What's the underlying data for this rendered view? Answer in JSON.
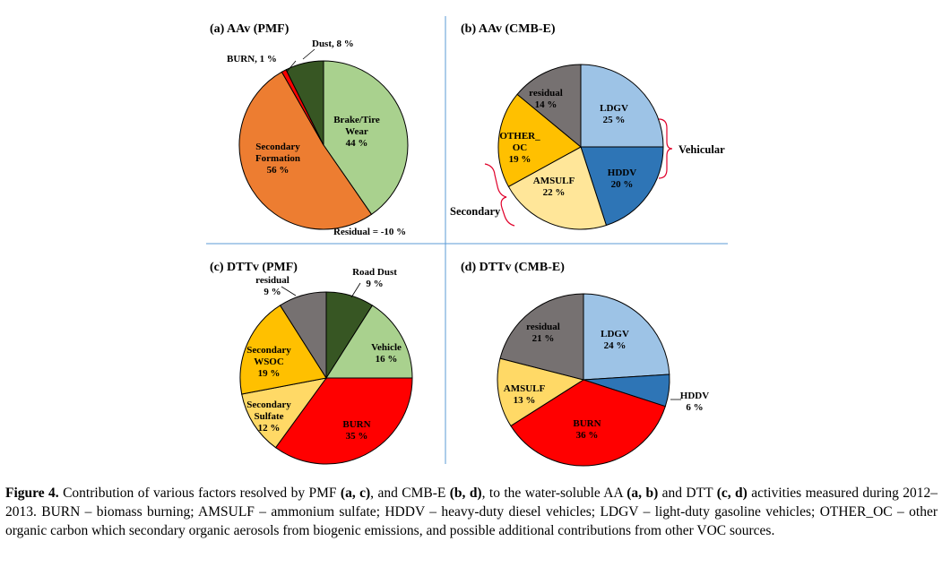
{
  "chart_data": [
    {
      "type": "pie",
      "title": "(a) AAv (PMF)",
      "slices": [
        {
          "label": "Brake/Tire\nWear\n44 %",
          "value": 44,
          "color": "#a9d18e"
        },
        {
          "label": "Residual = -10 %",
          "value": 0,
          "color": "#ffffff"
        },
        {
          "label": "Secondary\nFormation\n56 %",
          "value": 56,
          "color": "#ed7d31"
        },
        {
          "label": "BURN, 1 %",
          "value": 1,
          "color": "#ff0000"
        },
        {
          "label": "Dust, 8 %",
          "value": 8,
          "color": "#375623"
        }
      ]
    },
    {
      "type": "pie",
      "title": "(b) AAv (CMB-E)",
      "slices": [
        {
          "label": "LDGV\n25 %",
          "value": 25,
          "color": "#9dc3e6"
        },
        {
          "label": "HDDV\n20 %",
          "value": 20,
          "color": "#2e75b6"
        },
        {
          "label": "AMSULF\n22 %",
          "value": 22,
          "color": "#ffe699"
        },
        {
          "label": "OTHER_\nOC\n19 %",
          "value": 19,
          "color": "#ffc000"
        },
        {
          "label": "residual\n14 %",
          "value": 14,
          "color": "#767171"
        }
      ],
      "annotations": [
        "Vehicular",
        "Secondary"
      ]
    },
    {
      "type": "pie",
      "title": "(c) DTTv (PMF)",
      "slices": [
        {
          "label": "Road Dust\n9 %",
          "value": 9,
          "color": "#375623"
        },
        {
          "label": "Vehicle\n16 %",
          "value": 16,
          "color": "#a9d18e"
        },
        {
          "label": "BURN\n35 %",
          "value": 35,
          "color": "#ff0000"
        },
        {
          "label": "Secondary\nSulfate\n12 %",
          "value": 12,
          "color": "#ffd966"
        },
        {
          "label": "Secondary\nWSOC\n19 %",
          "value": 19,
          "color": "#ffc000"
        },
        {
          "label": "residual\n9 %",
          "value": 9,
          "color": "#767171"
        }
      ]
    },
    {
      "type": "pie",
      "title": "(d) DTTv (CMB-E)",
      "slices": [
        {
          "label": "LDGV\n24 %",
          "value": 24,
          "color": "#9dc3e6"
        },
        {
          "label": "HDDV\n6 %",
          "value": 6,
          "color": "#2e75b6"
        },
        {
          "label": "BURN\n36 %",
          "value": 36,
          "color": "#ff0000"
        },
        {
          "label": "AMSULF\n13 %",
          "value": 13,
          "color": "#ffd966"
        },
        {
          "label": "residual\n21 %",
          "value": 21,
          "color": "#767171"
        }
      ]
    }
  ],
  "caption": {
    "fig": "Figure 4.",
    "t1": " Contribution of various factors resolved by PMF ",
    "b1": "(a, c)",
    "t2": ", and CMB-E ",
    "b2": "(b, d)",
    "t3": ", to the water-soluble AA ",
    "b3": "(a, b)",
    "t4": " and DTT ",
    "b4": "(c, d)",
    "t5": " activities measured during 2012–2013. BURN – biomass burning; AMSULF – ammonium sulfate; HDDV – heavy-duty diesel vehicles; LDGV – light-duty gasoline vehicles; OTHER_OC – other organic carbon which secondary organic aerosols from biogenic emissions, and possible additional contributions from other VOC sources."
  },
  "colors": {
    "divider": "#5b9bd5",
    "bracket": "#e0002a",
    "outline": "#000000"
  }
}
